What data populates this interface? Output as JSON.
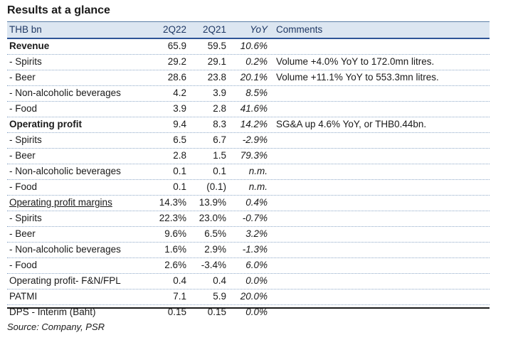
{
  "title": "Results at a glance",
  "header": {
    "label": "THB bn",
    "col_a": "2Q22",
    "col_b": "2Q21",
    "col_c": "YoY",
    "col_d": "Comments"
  },
  "rows": [
    {
      "label": "Revenue",
      "a": "65.9",
      "b": "59.5",
      "c": "10.6%",
      "d": ""
    },
    {
      "label": " - Spirits",
      "a": "29.2",
      "b": "29.1",
      "c": "0.2%",
      "d": "Volume +4.0% YoY to 172.0mn litres."
    },
    {
      "label": " - Beer",
      "a": "28.6",
      "b": "23.8",
      "c": "20.1%",
      "d": "Volume +11.1% YoY to 553.3mn litres."
    },
    {
      "label": " - Non-alcoholic beverages",
      "a": "4.2",
      "b": "3.9",
      "c": "8.5%",
      "d": ""
    },
    {
      "label": " - Food",
      "a": "3.9",
      "b": "2.8",
      "c": "41.6%",
      "d": ""
    },
    {
      "label": "Operating profit",
      "a": "9.4",
      "b": "8.3",
      "c": "14.2%",
      "d": "SG&A up 4.6% YoY, or THB0.44bn."
    },
    {
      "label": " - Spirits",
      "a": "6.5",
      "b": "6.7",
      "c": "-2.9%",
      "d": ""
    },
    {
      "label": " - Beer",
      "a": "2.8",
      "b": "1.5",
      "c": "79.3%",
      "d": ""
    },
    {
      "label": " - Non-alcoholic beverages",
      "a": "0.1",
      "b": "0.1",
      "c": "n.m.",
      "d": ""
    },
    {
      "label": " - Food",
      "a": "0.1",
      "b": "(0.1)",
      "c": "n.m.",
      "d": ""
    },
    {
      "label": "Operating profit margins",
      "a": "14.3%",
      "b": "13.9%",
      "c": "0.4%",
      "d": ""
    },
    {
      "label": " - Spirits",
      "a": "22.3%",
      "b": "23.0%",
      "c": "-0.7%",
      "d": ""
    },
    {
      "label": " - Beer",
      "a": "9.6%",
      "b": "6.5%",
      "c": "3.2%",
      "d": ""
    },
    {
      "label": " - Non-alcoholic beverages",
      "a": "1.6%",
      "b": "2.9%",
      "c": "-1.3%",
      "d": ""
    },
    {
      "label": " - Food",
      "a": "2.6%",
      "b": "-3.4%",
      "c": "6.0%",
      "d": ""
    },
    {
      "label": "Operating profit- F&N/FPL",
      "a": "0.4",
      "b": "0.4",
      "c": "0.0%",
      "d": ""
    },
    {
      "label": "PATMI",
      "a": "7.1",
      "b": "5.9",
      "c": "20.0%",
      "d": ""
    },
    {
      "label": "DPS - Interim (Baht)",
      "a": "0.15",
      "b": "0.15",
      "c": "0.0%",
      "d": ""
    }
  ],
  "source": "Source: Company, PSR"
}
